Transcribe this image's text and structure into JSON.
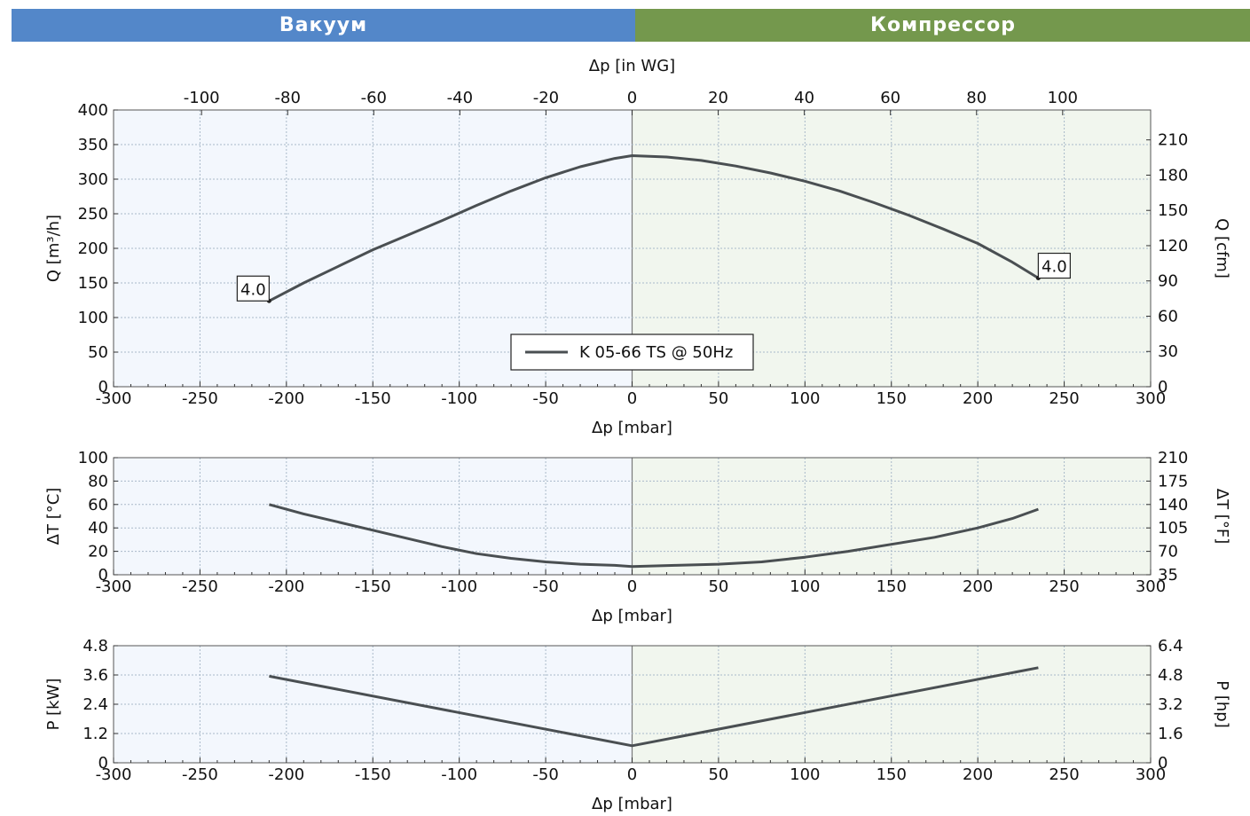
{
  "banners": {
    "vacuum": "Вакуум",
    "compressor": "Компрессор"
  },
  "colors": {
    "vacuum_banner": "#5387c9",
    "compressor_banner": "#74984d",
    "vacuum_bg": "#f3f7fd",
    "compressor_bg": "#f1f6ee",
    "line": "#4a4f52",
    "grid": "#a9b9c9"
  },
  "chart_data": [
    {
      "type": "line",
      "id": "flow",
      "xlabel": "Δp [mbar]",
      "top_xlabel": "Δp [in WG]",
      "ylabel": "Q [m³/h]",
      "right_ylabel": "Q [cfm]",
      "xlim": [
        -300,
        300
      ],
      "ylim": [
        0,
        400
      ],
      "x_ticks": [
        -300,
        -250,
        -200,
        -150,
        -100,
        -50,
        0,
        50,
        100,
        150,
        200,
        250,
        300
      ],
      "y_ticks": [
        0,
        50,
        100,
        150,
        200,
        250,
        300,
        350,
        400
      ],
      "top_ticks": [
        -100,
        -80,
        -60,
        -40,
        -20,
        0,
        20,
        40,
        60,
        80,
        100
      ],
      "right_ticks": [
        0,
        30,
        60,
        90,
        120,
        150,
        180,
        210
      ],
      "series": [
        {
          "name": "K 05-66 TS @ 50Hz",
          "points": [
            [
              -210,
              124
            ],
            [
              -190,
              150
            ],
            [
              -170,
              174
            ],
            [
              -150,
              198
            ],
            [
              -130,
              219
            ],
            [
              -110,
              240
            ],
            [
              -90,
              262
            ],
            [
              -70,
              283
            ],
            [
              -50,
              302
            ],
            [
              -30,
              318
            ],
            [
              -10,
              330
            ],
            [
              0,
              334
            ],
            [
              20,
              332
            ],
            [
              40,
              327
            ],
            [
              60,
              319
            ],
            [
              80,
              309
            ],
            [
              100,
              297
            ],
            [
              120,
              283
            ],
            [
              140,
              266
            ],
            [
              160,
              248
            ],
            [
              180,
              228
            ],
            [
              200,
              207
            ],
            [
              220,
              180
            ],
            [
              235,
              157
            ]
          ]
        }
      ],
      "annotations": [
        {
          "x": -210,
          "y": 124,
          "text": "4.0",
          "side": "left"
        },
        {
          "x": 235,
          "y": 157,
          "text": "4.0",
          "side": "right"
        }
      ],
      "legend": {
        "placement": "bottom-center"
      }
    },
    {
      "type": "line",
      "id": "temp",
      "xlabel": "Δp [mbar]",
      "ylabel": "ΔT [°C]",
      "right_ylabel": "ΔT [°F]",
      "xlim": [
        -300,
        300
      ],
      "ylim": [
        0,
        100
      ],
      "x_ticks": [
        -300,
        -250,
        -200,
        -150,
        -100,
        -50,
        0,
        50,
        100,
        150,
        200,
        250,
        300
      ],
      "y_ticks": [
        0,
        20,
        40,
        60,
        80,
        100
      ],
      "right_ticks": [
        35,
        70,
        105,
        140,
        175,
        210
      ],
      "series": [
        {
          "name": "K 05-66 TS @ 50Hz",
          "points": [
            [
              -210,
              60
            ],
            [
              -190,
              52
            ],
            [
              -170,
              45
            ],
            [
              -150,
              38
            ],
            [
              -130,
              31
            ],
            [
              -110,
              24
            ],
            [
              -90,
              18
            ],
            [
              -70,
              14
            ],
            [
              -50,
              11
            ],
            [
              -30,
              9
            ],
            [
              -10,
              8
            ],
            [
              0,
              7
            ],
            [
              25,
              8
            ],
            [
              50,
              9
            ],
            [
              75,
              11
            ],
            [
              100,
              15
            ],
            [
              125,
              20
            ],
            [
              150,
              26
            ],
            [
              175,
              32
            ],
            [
              200,
              40
            ],
            [
              220,
              48
            ],
            [
              235,
              56
            ]
          ]
        }
      ]
    },
    {
      "type": "line",
      "id": "power",
      "xlabel": "Δp [mbar]",
      "ylabel": "P [kW]",
      "right_ylabel": "P [hp]",
      "xlim": [
        -300,
        300
      ],
      "ylim": [
        0,
        4.8
      ],
      "x_ticks": [
        -300,
        -250,
        -200,
        -150,
        -100,
        -50,
        0,
        50,
        100,
        150,
        200,
        250,
        300
      ],
      "y_ticks": [
        0,
        1.2,
        2.4,
        3.6,
        4.8
      ],
      "right_ticks": [
        0,
        1.6,
        3.2,
        4.8,
        6.4
      ],
      "series": [
        {
          "name": "K 05-66 TS @ 50Hz",
          "points": [
            [
              -210,
              3.55
            ],
            [
              0,
              0.7
            ],
            [
              235,
              3.9
            ]
          ]
        }
      ]
    }
  ]
}
